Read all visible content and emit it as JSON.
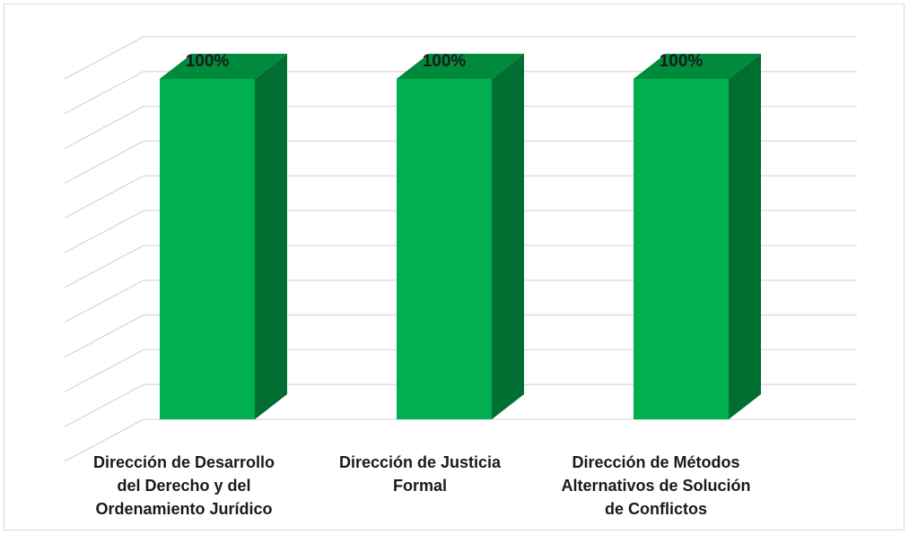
{
  "chart_data": {
    "type": "bar",
    "categories": [
      "Dirección de Desarrollo\ndel Derecho y del\nOrdenamiento Jurídico",
      "Dirección de Justicia\nFormal",
      "Dirección de Métodos\nAlternativos de Solución\nde Conflictos"
    ],
    "values": [
      1.0,
      1.0,
      1.0
    ],
    "data_labels": [
      "100%",
      "100%",
      "100%"
    ],
    "ylim": [
      0,
      1.1
    ],
    "grid": true,
    "legend": "none",
    "colors": {
      "front": "#00b050",
      "side": "#006f31",
      "top": "#008a3c",
      "grid": "#d9d9d9",
      "label": "#1a1a1a"
    }
  }
}
